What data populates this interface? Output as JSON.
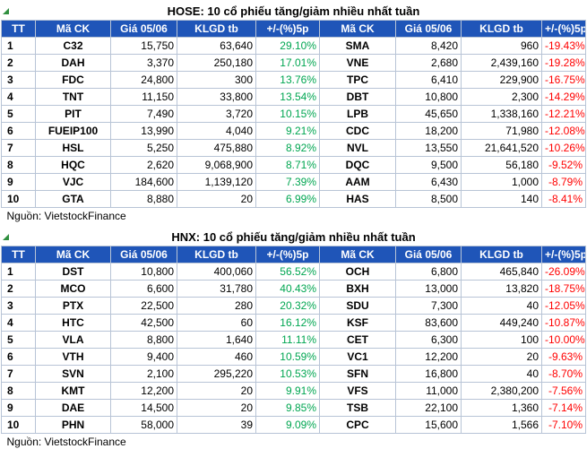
{
  "hose": {
    "title": "HOSE: 10 cổ phiếu tăng/giảm nhiều nhất tuần",
    "headers": [
      "TT",
      "Mã CK",
      "Giá 05/06",
      "KLGD tb",
      "+/-(%)5p",
      "Mã CK",
      "Giá 05/06",
      "KLGD tb",
      "+/-(%)5p"
    ],
    "source": "Nguồn: VietstockFinance",
    "rows": [
      {
        "tt": "1",
        "gain_code": "C32",
        "gain_price": "15,750",
        "gain_vol": "63,640",
        "gain_pct": "29.10%",
        "loss_code": "SMA",
        "loss_price": "8,420",
        "loss_vol": "960",
        "loss_pct": "-19.43%"
      },
      {
        "tt": "2",
        "gain_code": "DAH",
        "gain_price": "3,370",
        "gain_vol": "250,180",
        "gain_pct": "17.01%",
        "loss_code": "VNE",
        "loss_price": "2,680",
        "loss_vol": "2,439,160",
        "loss_pct": "-19.28%"
      },
      {
        "tt": "3",
        "gain_code": "FDC",
        "gain_price": "24,800",
        "gain_vol": "300",
        "gain_pct": "13.76%",
        "loss_code": "TPC",
        "loss_price": "6,410",
        "loss_vol": "229,900",
        "loss_pct": "-16.75%"
      },
      {
        "tt": "4",
        "gain_code": "TNT",
        "gain_price": "11,150",
        "gain_vol": "33,800",
        "gain_pct": "13.54%",
        "loss_code": "DBT",
        "loss_price": "10,800",
        "loss_vol": "2,300",
        "loss_pct": "-14.29%"
      },
      {
        "tt": "5",
        "gain_code": "PIT",
        "gain_price": "7,490",
        "gain_vol": "3,720",
        "gain_pct": "10.15%",
        "loss_code": "LPB",
        "loss_price": "45,650",
        "loss_vol": "1,338,160",
        "loss_pct": "-12.21%"
      },
      {
        "tt": "6",
        "gain_code": "FUEIP100",
        "gain_price": "13,990",
        "gain_vol": "4,040",
        "gain_pct": "9.21%",
        "loss_code": "CDC",
        "loss_price": "18,200",
        "loss_vol": "71,980",
        "loss_pct": "-12.08%"
      },
      {
        "tt": "7",
        "gain_code": "HSL",
        "gain_price": "5,250",
        "gain_vol": "475,880",
        "gain_pct": "8.92%",
        "loss_code": "NVL",
        "loss_price": "13,550",
        "loss_vol": "21,641,520",
        "loss_pct": "-10.26%"
      },
      {
        "tt": "8",
        "gain_code": "HQC",
        "gain_price": "2,620",
        "gain_vol": "9,068,900",
        "gain_pct": "8.71%",
        "loss_code": "DQC",
        "loss_price": "9,500",
        "loss_vol": "56,180",
        "loss_pct": "-9.52%"
      },
      {
        "tt": "9",
        "gain_code": "VJC",
        "gain_price": "184,600",
        "gain_vol": "1,139,120",
        "gain_pct": "7.39%",
        "loss_code": "AAM",
        "loss_price": "6,430",
        "loss_vol": "1,000",
        "loss_pct": "-8.79%"
      },
      {
        "tt": "10",
        "gain_code": "GTA",
        "gain_price": "8,880",
        "gain_vol": "20",
        "gain_pct": "6.99%",
        "loss_code": "HAS",
        "loss_price": "8,500",
        "loss_vol": "140",
        "loss_pct": "-8.41%"
      }
    ]
  },
  "hnx": {
    "title": "HNX: 10 cổ phiếu tăng/giảm nhiều nhất tuần",
    "headers": [
      "TT",
      "Mã CK",
      "Giá 05/06",
      "KLGD tb",
      "+/-(%)5p",
      "Mã CK",
      "Giá 05/06",
      "KLGD tb",
      "+/-(%)5p"
    ],
    "source": "Nguồn: VietstockFinance",
    "rows": [
      {
        "tt": "1",
        "gain_code": "DST",
        "gain_price": "10,800",
        "gain_vol": "400,060",
        "gain_pct": "56.52%",
        "loss_code": "OCH",
        "loss_price": "6,800",
        "loss_vol": "465,840",
        "loss_pct": "-26.09%"
      },
      {
        "tt": "2",
        "gain_code": "MCO",
        "gain_price": "6,600",
        "gain_vol": "31,780",
        "gain_pct": "40.43%",
        "loss_code": "BXH",
        "loss_price": "13,000",
        "loss_vol": "13,820",
        "loss_pct": "-18.75%"
      },
      {
        "tt": "3",
        "gain_code": "PTX",
        "gain_price": "22,500",
        "gain_vol": "280",
        "gain_pct": "20.32%",
        "loss_code": "SDU",
        "loss_price": "7,300",
        "loss_vol": "40",
        "loss_pct": "-12.05%"
      },
      {
        "tt": "4",
        "gain_code": "HTC",
        "gain_price": "42,500",
        "gain_vol": "60",
        "gain_pct": "16.12%",
        "loss_code": "KSF",
        "loss_price": "83,600",
        "loss_vol": "449,240",
        "loss_pct": "-10.87%"
      },
      {
        "tt": "5",
        "gain_code": "VLA",
        "gain_price": "8,800",
        "gain_vol": "1,640",
        "gain_pct": "11.11%",
        "loss_code": "CET",
        "loss_price": "6,300",
        "loss_vol": "100",
        "loss_pct": "-10.00%"
      },
      {
        "tt": "6",
        "gain_code": "VTH",
        "gain_price": "9,400",
        "gain_vol": "460",
        "gain_pct": "10.59%",
        "loss_code": "VC1",
        "loss_price": "12,200",
        "loss_vol": "20",
        "loss_pct": "-9.63%"
      },
      {
        "tt": "7",
        "gain_code": "SVN",
        "gain_price": "2,100",
        "gain_vol": "295,220",
        "gain_pct": "10.53%",
        "loss_code": "SFN",
        "loss_price": "16,800",
        "loss_vol": "40",
        "loss_pct": "-8.70%"
      },
      {
        "tt": "8",
        "gain_code": "KMT",
        "gain_price": "12,200",
        "gain_vol": "20",
        "gain_pct": "9.91%",
        "loss_code": "VFS",
        "loss_price": "11,000",
        "loss_vol": "2,380,200",
        "loss_pct": "-7.56%"
      },
      {
        "tt": "9",
        "gain_code": "DAE",
        "gain_price": "14,500",
        "gain_vol": "20",
        "gain_pct": "9.85%",
        "loss_code": "TSB",
        "loss_price": "22,100",
        "loss_vol": "1,360",
        "loss_pct": "-7.14%"
      },
      {
        "tt": "10",
        "gain_code": "PHN",
        "gain_price": "58,000",
        "gain_vol": "39",
        "gain_pct": "9.09%",
        "loss_code": "CPC",
        "loss_price": "15,600",
        "loss_vol": "1,566",
        "loss_pct": "-7.10%"
      }
    ]
  }
}
